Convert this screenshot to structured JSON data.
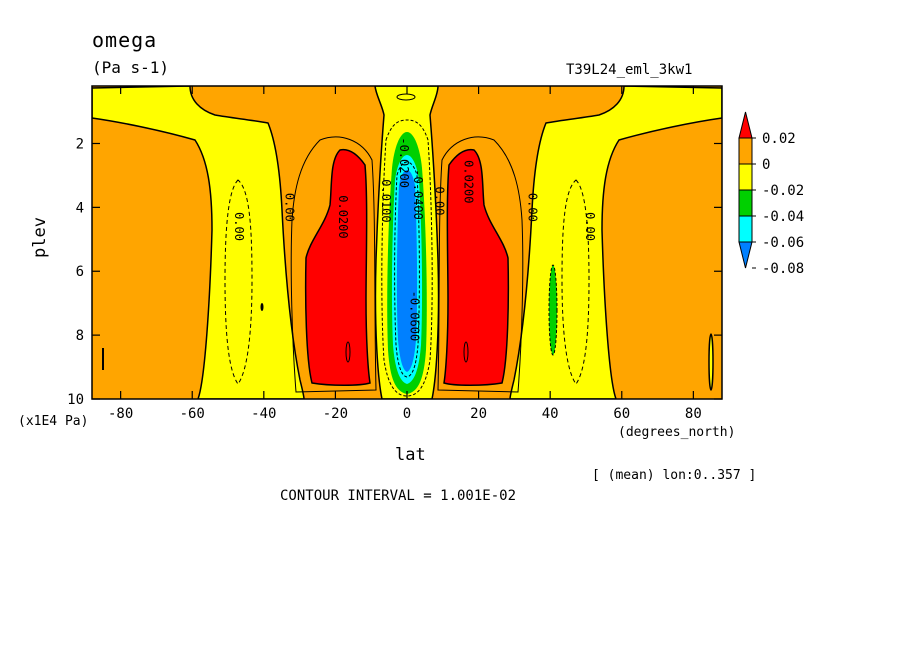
{
  "chart_data": {
    "type": "heatmap",
    "title": "omega",
    "units": "(Pa s-1)",
    "run_label": "T39L24_eml_3kw1",
    "xlabel": "lat",
    "x_units": "(degrees_north)",
    "ylabel": "plev",
    "y_units": "(x1E4 Pa)",
    "mean_label": "[ (mean) lon:0..357 ]",
    "contour_interval": "CONTOUR INTERVAL = 1.001E-02",
    "xlim": [
      -88,
      88
    ],
    "ylim": [
      10,
      0.2
    ],
    "x_ticks": [
      -80,
      -60,
      -40,
      -20,
      0,
      20,
      40,
      60,
      80
    ],
    "x_tick_labels": [
      "-80",
      "-60",
      "-40",
      "-20",
      "0",
      "20",
      "40",
      "60",
      "80"
    ],
    "y_ticks": [
      2,
      4,
      6,
      8,
      10
    ],
    "y_tick_labels": [
      "2",
      "4",
      "6",
      "8",
      "10"
    ],
    "colorbar": {
      "levels": [
        0.02,
        0,
        -0.02,
        -0.04,
        -0.06,
        -0.08
      ],
      "labels": [
        "0.02",
        "0",
        "-0.02",
        "-0.04",
        "-0.06",
        "-0.08"
      ],
      "colors": [
        "#ff0000",
        "#ffa500",
        "#ffff00",
        "#00d000",
        "#00ffff",
        "#0080ff"
      ],
      "top_color": "#ff0000",
      "bottom_color": "#0080ff"
    },
    "contour_labels": [
      {
        "text": "0.00",
        "x": -48,
        "y": 4.6
      },
      {
        "text": "0.00",
        "x": -34,
        "y": 4.0
      },
      {
        "text": "0.0200",
        "x": -19,
        "y": 4.3
      },
      {
        "text": "0.0100",
        "x": -7,
        "y": 3.8
      },
      {
        "text": "-0.0200",
        "x": -2,
        "y": 2.6
      },
      {
        "text": "-0.0400",
        "x": 2,
        "y": 3.6
      },
      {
        "text": "-0.0600",
        "x": 1,
        "y": 7.4
      },
      {
        "text": "0.00",
        "x": 8,
        "y": 3.8
      },
      {
        "text": "0.0200",
        "x": 16,
        "y": 3.2
      },
      {
        "text": "0.00",
        "x": 34,
        "y": 4.0
      },
      {
        "text": "0.00",
        "x": 50,
        "y": 4.6
      }
    ]
  }
}
